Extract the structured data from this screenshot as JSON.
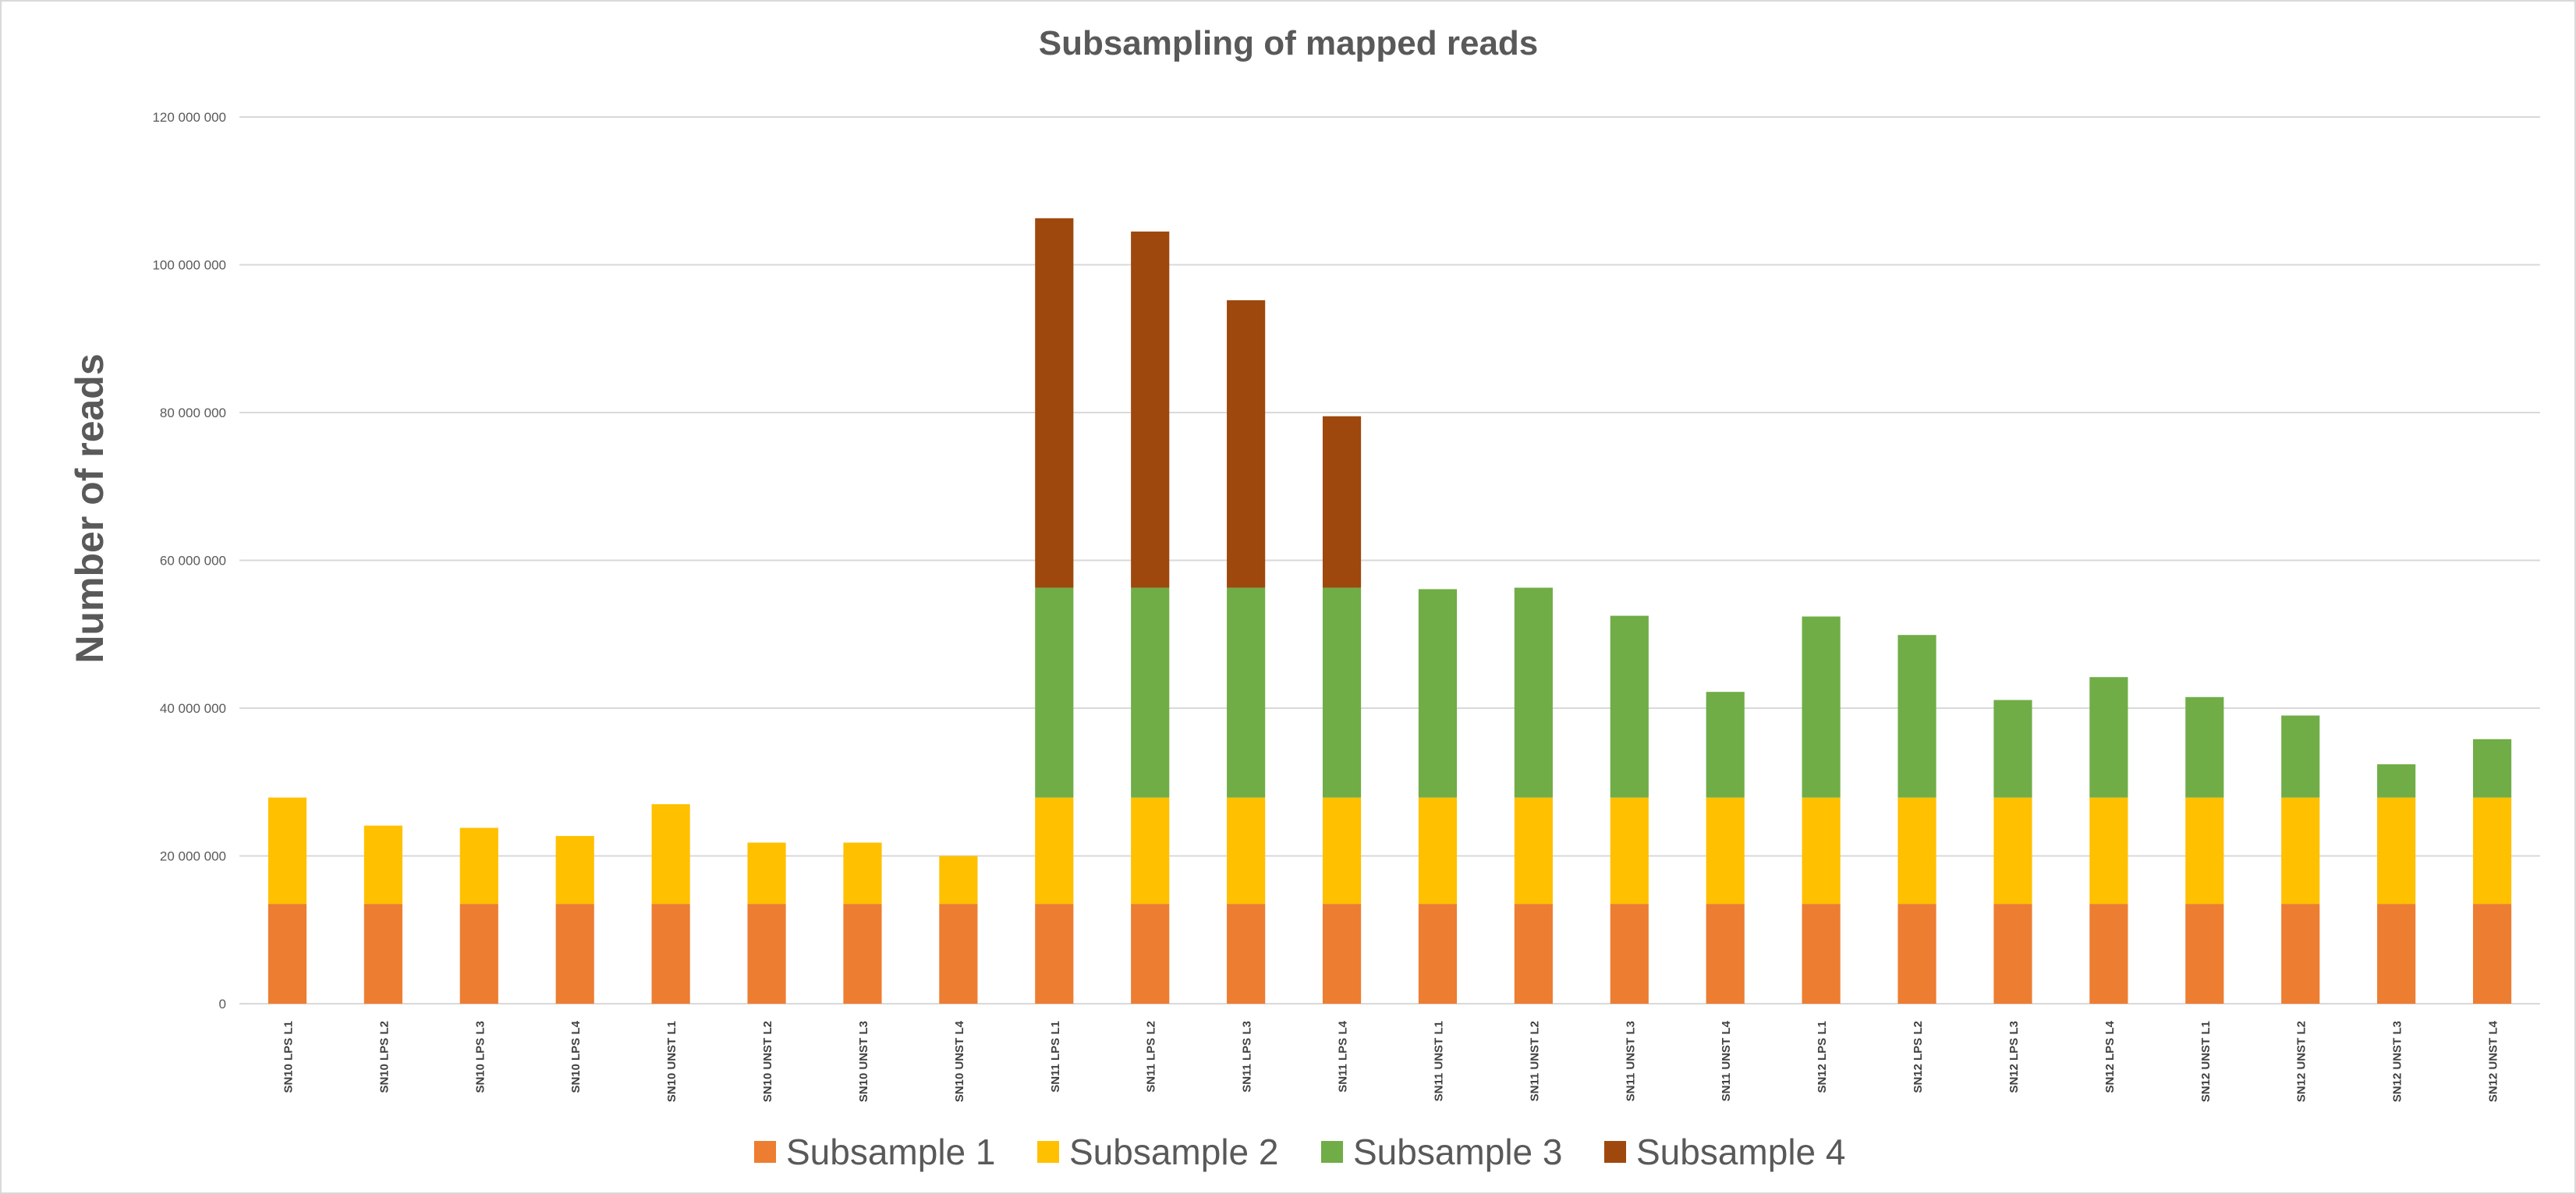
{
  "chart_data": {
    "type": "bar",
    "stacked": true,
    "title": "Subsampling of mapped reads",
    "xlabel": "",
    "ylabel": "Number of reads",
    "ylim": [
      0,
      120000000
    ],
    "y_ticks": [
      {
        "value": 0,
        "label": "0"
      },
      {
        "value": 20000000,
        "label": "20 000 000"
      },
      {
        "value": 40000000,
        "label": "40 000 000"
      },
      {
        "value": 60000000,
        "label": "60 000 000"
      },
      {
        "value": 80000000,
        "label": "80 000 000"
      },
      {
        "value": 100000000,
        "label": "100 000 000"
      },
      {
        "value": 120000000,
        "label": "120 000 000"
      }
    ],
    "grid": true,
    "legend_position": "bottom",
    "categories": [
      "SN10 LPS L1",
      "SN10 LPS L2",
      "SN10 LPS L3",
      "SN10 LPS L4",
      "SN10 UNST L1",
      "SN10 UNST L2",
      "SN10 UNST L3",
      "SN10 UNST L4",
      "SN11 LPS L1",
      "SN11 LPS L2",
      "SN11 LPS L3",
      "SN11 LPS L4",
      "SN11 UNST L1",
      "SN11 UNST L2",
      "SN11 UNST L3",
      "SN11 UNST L4",
      "SN12 LPS L1",
      "SN12 LPS L2",
      "SN12 LPS L3",
      "SN12 LPS L4",
      "SN12 UNST L1",
      "SN12 UNST L2",
      "SN12 UNST L3",
      "SN12 UNST L4"
    ],
    "series": [
      {
        "name": "Subsample 1",
        "color": "#ED7D31",
        "values": [
          13500000,
          13500000,
          13500000,
          13500000,
          13500000,
          13500000,
          13500000,
          13500000,
          13500000,
          13500000,
          13500000,
          13500000,
          13500000,
          13500000,
          13500000,
          13500000,
          13500000,
          13500000,
          13500000,
          13500000,
          13500000,
          13500000,
          13500000,
          13500000
        ]
      },
      {
        "name": "Subsample 2",
        "color": "#FFC000",
        "values": [
          14400000,
          10600000,
          10300000,
          9200000,
          13500000,
          8300000,
          8300000,
          6500000,
          14400000,
          14400000,
          14400000,
          14400000,
          14400000,
          14400000,
          14400000,
          14400000,
          14400000,
          14400000,
          14400000,
          14400000,
          14400000,
          14400000,
          14400000,
          14400000
        ]
      },
      {
        "name": "Subsample 3",
        "color": "#70AD47",
        "values": [
          0,
          0,
          0,
          0,
          0,
          0,
          0,
          0,
          28400000,
          28400000,
          28400000,
          28400000,
          28200000,
          28400000,
          24600000,
          14300000,
          24500000,
          22000000,
          13200000,
          16300000,
          13600000,
          11100000,
          4500000,
          7900000
        ]
      },
      {
        "name": "Subsample 4",
        "color": "#9E480E",
        "values": [
          0,
          0,
          0,
          0,
          0,
          0,
          0,
          0,
          50000000,
          48200000,
          38900000,
          23200000,
          0,
          0,
          0,
          0,
          0,
          0,
          0,
          0,
          0,
          0,
          0,
          0
        ]
      }
    ]
  }
}
